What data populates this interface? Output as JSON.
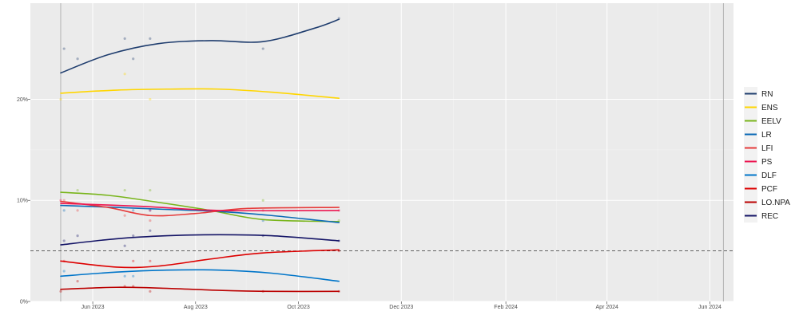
{
  "chart_data": {
    "type": "line",
    "title": "",
    "xlabel": "",
    "ylabel": "",
    "x_range": [
      "2023-04-25",
      "2024-06-15"
    ],
    "y_range": [
      0,
      29.5
    ],
    "x_ticks": [
      {
        "date": "2023-06-01",
        "label": "Jun 2023"
      },
      {
        "date": "2023-08-01",
        "label": "Aug 2023"
      },
      {
        "date": "2023-10-01",
        "label": "Oct 2023"
      },
      {
        "date": "2023-12-01",
        "label": "Dec 2023"
      },
      {
        "date": "2024-02-01",
        "label": "Feb 2024"
      },
      {
        "date": "2024-04-01",
        "label": "Apr 2024"
      },
      {
        "date": "2024-06-01",
        "label": "Jun 2024"
      }
    ],
    "y_ticks": [
      {
        "value": 0,
        "label": "0%"
      },
      {
        "value": 10,
        "label": "10%"
      },
      {
        "value": 20,
        "label": "20%"
      }
    ],
    "vertical_lines": [
      "2023-05-13",
      "2024-06-09"
    ],
    "threshold": 5,
    "grid": true,
    "legend_position": "right",
    "series": [
      {
        "name": "RN",
        "color": "#1f3d6e",
        "line": [
          [
            "2023-05-13",
            22.6
          ],
          [
            "2023-06-10",
            24.4
          ],
          [
            "2023-07-10",
            25.5
          ],
          [
            "2023-08-10",
            25.8
          ],
          [
            "2023-09-10",
            25.7
          ],
          [
            "2023-10-10",
            27.0
          ],
          [
            "2023-10-25",
            27.9
          ]
        ],
        "points": [
          [
            "2023-05-15",
            25
          ],
          [
            "2023-05-23",
            24
          ],
          [
            "2023-06-20",
            26
          ],
          [
            "2023-06-25",
            24
          ],
          [
            "2023-07-05",
            26
          ],
          [
            "2023-09-10",
            25
          ],
          [
            "2023-10-25",
            28
          ]
        ]
      },
      {
        "name": "ENS",
        "color": "#ffd600",
        "line": [
          [
            "2023-05-13",
            20.6
          ],
          [
            "2023-06-15",
            20.9
          ],
          [
            "2023-07-15",
            21.0
          ],
          [
            "2023-08-15",
            21.0
          ],
          [
            "2023-09-15",
            20.7
          ],
          [
            "2023-10-25",
            20.1
          ]
        ],
        "points": [
          [
            "2023-05-13",
            20
          ],
          [
            "2023-06-20",
            22.5
          ],
          [
            "2023-07-05",
            20
          ]
        ]
      },
      {
        "name": "EELV",
        "color": "#79b51c",
        "line": [
          [
            "2023-05-13",
            10.8
          ],
          [
            "2023-06-10",
            10.5
          ],
          [
            "2023-07-10",
            9.8
          ],
          [
            "2023-08-10",
            9.0
          ],
          [
            "2023-09-10",
            8.1
          ],
          [
            "2023-10-25",
            7.9
          ]
        ],
        "points": [
          [
            "2023-05-23",
            11
          ],
          [
            "2023-06-20",
            11
          ],
          [
            "2023-07-05",
            11
          ],
          [
            "2023-09-10",
            10
          ],
          [
            "2023-10-25",
            8
          ]
        ]
      },
      {
        "name": "LR",
        "color": "#0c6ab6",
        "line": [
          [
            "2023-05-13",
            9.5
          ],
          [
            "2023-06-15",
            9.3
          ],
          [
            "2023-07-15",
            9.1
          ],
          [
            "2023-08-15",
            8.9
          ],
          [
            "2023-09-15",
            8.5
          ],
          [
            "2023-10-25",
            7.8
          ]
        ],
        "points": [
          [
            "2023-05-15",
            9
          ],
          [
            "2023-06-25",
            9
          ],
          [
            "2023-07-05",
            9
          ],
          [
            "2023-09-10",
            8
          ]
        ]
      },
      {
        "name": "LFI",
        "color": "#e63b3b",
        "line": [
          [
            "2023-05-13",
            9.9
          ],
          [
            "2023-06-10",
            9.3
          ],
          [
            "2023-07-05",
            8.5
          ],
          [
            "2023-08-01",
            8.7
          ],
          [
            "2023-09-01",
            9.2
          ],
          [
            "2023-10-25",
            9.3
          ]
        ],
        "points": [
          [
            "2023-05-15",
            10
          ],
          [
            "2023-05-23",
            9
          ],
          [
            "2023-06-20",
            8.5
          ],
          [
            "2023-07-05",
            8
          ],
          [
            "2023-09-10",
            9
          ]
        ]
      },
      {
        "name": "PS",
        "color": "#ed1651",
        "line": [
          [
            "2023-05-13",
            9.7
          ],
          [
            "2023-07-01",
            9.4
          ],
          [
            "2023-08-15",
            9.0
          ],
          [
            "2023-10-25",
            9.0
          ]
        ],
        "points": [
          [
            "2023-05-13",
            10
          ],
          [
            "2023-07-05",
            9
          ],
          [
            "2023-10-25",
            9
          ]
        ]
      },
      {
        "name": "DLF",
        "color": "#0075c9",
        "line": [
          [
            "2023-05-13",
            2.5
          ],
          [
            "2023-06-15",
            2.9
          ],
          [
            "2023-07-15",
            3.1
          ],
          [
            "2023-08-15",
            3.1
          ],
          [
            "2023-09-15",
            2.8
          ],
          [
            "2023-10-25",
            2.0
          ]
        ],
        "points": [
          [
            "2023-05-15",
            3
          ],
          [
            "2023-06-20",
            2.5
          ],
          [
            "2023-06-25",
            2.5
          ]
        ]
      },
      {
        "name": "PCF",
        "color": "#dd0000",
        "line": [
          [
            "2023-05-13",
            4.0
          ],
          [
            "2023-06-15",
            3.4
          ],
          [
            "2023-07-10",
            3.5
          ],
          [
            "2023-08-10",
            4.2
          ],
          [
            "2023-09-10",
            4.8
          ],
          [
            "2023-10-25",
            5.1
          ]
        ],
        "points": [
          [
            "2023-05-15",
            4
          ],
          [
            "2023-06-25",
            4
          ],
          [
            "2023-07-05",
            4
          ],
          [
            "2023-10-25",
            5
          ]
        ]
      },
      {
        "name": "LO.NPA",
        "color": "#bb0000",
        "line": [
          [
            "2023-05-13",
            1.2
          ],
          [
            "2023-06-15",
            1.4
          ],
          [
            "2023-07-15",
            1.3
          ],
          [
            "2023-08-15",
            1.1
          ],
          [
            "2023-09-15",
            1.0
          ],
          [
            "2023-10-25",
            1.0
          ]
        ],
        "points": [
          [
            "2023-05-13",
            1
          ],
          [
            "2023-05-23",
            2
          ],
          [
            "2023-06-20",
            1.5
          ],
          [
            "2023-06-25",
            1.5
          ],
          [
            "2023-07-05",
            1
          ],
          [
            "2023-09-10",
            1
          ],
          [
            "2023-10-25",
            1
          ]
        ]
      },
      {
        "name": "REC",
        "color": "#141466",
        "line": [
          [
            "2023-05-13",
            5.6
          ],
          [
            "2023-06-15",
            6.2
          ],
          [
            "2023-07-15",
            6.5
          ],
          [
            "2023-08-15",
            6.6
          ],
          [
            "2023-09-15",
            6.5
          ],
          [
            "2023-10-25",
            6.0
          ]
        ],
        "points": [
          [
            "2023-05-15",
            6
          ],
          [
            "2023-05-23",
            6.5
          ],
          [
            "2023-06-20",
            5.5
          ],
          [
            "2023-06-25",
            6.5
          ],
          [
            "2023-07-05",
            7
          ],
          [
            "2023-09-10",
            6.5
          ],
          [
            "2023-10-25",
            6
          ]
        ]
      }
    ]
  }
}
